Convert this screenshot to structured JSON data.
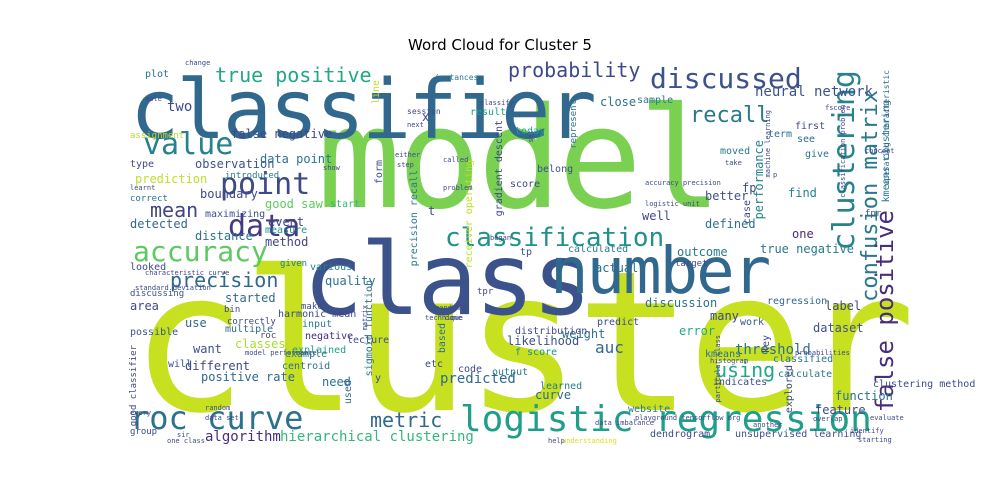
{
  "title": "Word Cloud for Cluster 5",
  "words": [
    {
      "text": "cluster",
      "color": "#c7e020"
    },
    {
      "text": "model",
      "color": "#7ad151"
    },
    {
      "text": "class",
      "color": "#3b528b"
    },
    {
      "text": "classifier",
      "color": "#31688e"
    },
    {
      "text": "number",
      "color": "#31688e"
    },
    {
      "text": "logistic regression",
      "color": "#1f9e89"
    },
    {
      "text": "roc curve",
      "color": "#2c728e"
    },
    {
      "text": "point",
      "color": "#3e4989"
    },
    {
      "text": "value",
      "color": "#26828e"
    },
    {
      "text": "data",
      "color": "#443983"
    },
    {
      "text": "accuracy",
      "color": "#5ec962"
    },
    {
      "text": "classification",
      "color": "#21918c"
    },
    {
      "text": "discussed",
      "color": "#3b528b"
    },
    {
      "text": "clustering",
      "color": "#26828e"
    },
    {
      "text": "confusion matrix",
      "color": "#2a788e"
    },
    {
      "text": "false positive",
      "color": "#472d7b"
    },
    {
      "text": "true positive",
      "color": "#22a884"
    },
    {
      "text": "probability",
      "color": "#3e4989"
    },
    {
      "text": "recall",
      "color": "#2a788e"
    },
    {
      "text": "precision",
      "color": "#31688e"
    },
    {
      "text": "mean",
      "color": "#414487"
    },
    {
      "text": "metric",
      "color": "#31688e"
    },
    {
      "text": "hierarchical clustering",
      "color": "#35b779"
    },
    {
      "text": "algorithm",
      "color": "#472d7b"
    },
    {
      "text": "neural network",
      "color": "#3b528b"
    },
    {
      "text": "using",
      "color": "#22a884"
    },
    {
      "text": "auc",
      "color": "#31688e"
    },
    {
      "text": "threshold",
      "color": "#2c728e"
    },
    {
      "text": "predicted",
      "color": "#31688e"
    },
    {
      "text": "two",
      "color": "#3e4989"
    },
    {
      "text": "observation",
      "color": "#3b528b"
    },
    {
      "text": "boundary",
      "color": "#3e4989"
    },
    {
      "text": "prediction",
      "color": "#bddf26"
    },
    {
      "text": "false negative",
      "color": "#3e4989"
    },
    {
      "text": "data point",
      "color": "#2c728e"
    },
    {
      "text": "detected",
      "color": "#31688e"
    },
    {
      "text": "distance",
      "color": "#2c728e"
    },
    {
      "text": "method",
      "color": "#414487"
    },
    {
      "text": "event",
      "color": "#3e4989"
    },
    {
      "text": "measure",
      "color": "#21918c"
    },
    {
      "text": "good saw",
      "color": "#5ec962"
    },
    {
      "text": "start",
      "color": "#35b779"
    },
    {
      "text": "maximizing",
      "color": "#3b528b"
    },
    {
      "text": "quality",
      "color": "#2c728e"
    },
    {
      "text": "various",
      "color": "#26828e"
    },
    {
      "text": "started",
      "color": "#31688e"
    },
    {
      "text": "area",
      "color": "#3e4989"
    },
    {
      "text": "use",
      "color": "#31688e"
    },
    {
      "text": "harmonic mean",
      "color": "#3e4989"
    },
    {
      "text": "input",
      "color": "#2a788e"
    },
    {
      "text": "negative",
      "color": "#472d7b"
    },
    {
      "text": "lecture",
      "color": "#3b528b"
    },
    {
      "text": "explained",
      "color": "#1f9e89"
    },
    {
      "text": "classes",
      "color": "#aadc32"
    },
    {
      "text": "want",
      "color": "#3b528b"
    },
    {
      "text": "different",
      "color": "#3e4989"
    },
    {
      "text": "positive rate",
      "color": "#31688e"
    },
    {
      "text": "need",
      "color": "#2c728e"
    },
    {
      "text": "used",
      "color": "#31688e"
    },
    {
      "text": "outcome",
      "color": "#2a788e"
    },
    {
      "text": "actual",
      "color": "#2c728e"
    },
    {
      "text": "discussion",
      "color": "#2c728e"
    },
    {
      "text": "likelihood",
      "color": "#3b528b"
    },
    {
      "text": "weight",
      "color": "#2c728e"
    },
    {
      "text": "curve",
      "color": "#31688e"
    },
    {
      "text": "error",
      "color": "#22a884"
    },
    {
      "text": "dataset",
      "color": "#3b528b"
    },
    {
      "text": "label",
      "color": "#3e4989"
    },
    {
      "text": "feature",
      "color": "#3e4989"
    },
    {
      "text": "function",
      "color": "#2c728e"
    },
    {
      "text": "true negative",
      "color": "#2a788e"
    },
    {
      "text": "performance",
      "color": "#26828e"
    },
    {
      "text": "better",
      "color": "#3b528b"
    },
    {
      "text": "find",
      "color": "#26828e"
    },
    {
      "text": "one",
      "color": "#482878"
    },
    {
      "text": "defined",
      "color": "#2c728e"
    },
    {
      "text": "kmeans clustering",
      "color": "#2a788e"
    },
    {
      "text": "dendrogram",
      "color": "#3e4989"
    },
    {
      "text": "unsupervised learning",
      "color": "#3b528b"
    },
    {
      "text": "website",
      "color": "#2c728e"
    },
    {
      "text": "result",
      "color": "#1f9e89"
    },
    {
      "text": "close",
      "color": "#2c728e"
    },
    {
      "text": "sample",
      "color": "#2a788e"
    },
    {
      "text": "moved",
      "color": "#2a788e"
    },
    {
      "text": "first",
      "color": "#3e4989"
    },
    {
      "text": "see",
      "color": "#31688e"
    },
    {
      "text": "give",
      "color": "#2c728e"
    },
    {
      "text": "term",
      "color": "#2c728e"
    },
    {
      "text": "plot",
      "color": "#2c728e"
    },
    {
      "text": "assignment",
      "color": "#b5de2b"
    },
    {
      "text": "type",
      "color": "#3e4989"
    },
    {
      "text": "correct",
      "color": "#2c728e"
    },
    {
      "text": "today",
      "color": "#1f9e89"
    },
    {
      "text": "belong",
      "color": "#3b528b"
    },
    {
      "text": "score",
      "color": "#3e4989"
    },
    {
      "text": "calculated",
      "color": "#2a788e"
    },
    {
      "text": "predict",
      "color": "#3e4989"
    },
    {
      "text": "many",
      "color": "#3e4989"
    },
    {
      "text": "regression",
      "color": "#31688e"
    },
    {
      "text": "work",
      "color": "#3b528b"
    },
    {
      "text": "key",
      "color": "#3e4989"
    },
    {
      "text": "kmeans",
      "color": "#2c728e"
    },
    {
      "text": "classified",
      "color": "#2c728e"
    },
    {
      "text": "calculate",
      "color": "#2a788e"
    },
    {
      "text": "explored",
      "color": "#3e4989"
    },
    {
      "text": "indicates",
      "color": "#3e4989"
    },
    {
      "text": "based",
      "color": "#2c728e"
    },
    {
      "text": "code",
      "color": "#3e4989"
    },
    {
      "text": "output",
      "color": "#2a788e"
    },
    {
      "text": "etc",
      "color": "#3e4989"
    },
    {
      "text": "learned",
      "color": "#2a788e"
    },
    {
      "text": "distribution",
      "color": "#3e4989"
    },
    {
      "text": "f score",
      "color": "#21918c"
    },
    {
      "text": "correctly",
      "color": "#3e4989"
    },
    {
      "text": "multiple",
      "color": "#31688e"
    },
    {
      "text": "possible",
      "color": "#3b528b"
    },
    {
      "text": "will",
      "color": "#3b528b"
    },
    {
      "text": "example",
      "color": "#2a788e"
    },
    {
      "text": "centroid",
      "color": "#2c728e"
    },
    {
      "text": "group",
      "color": "#3e4989"
    },
    {
      "text": "given",
      "color": "#2a788e"
    },
    {
      "text": "looked",
      "color": "#3e4989"
    },
    {
      "text": "discussing",
      "color": "#3b528b"
    },
    {
      "text": "tp",
      "color": "#3e4989"
    },
    {
      "text": "tpr",
      "color": "#3e4989"
    },
    {
      "text": "fpr",
      "color": "#3b528b"
    },
    {
      "text": "make",
      "color": "#3e4989"
    },
    {
      "text": "bin",
      "color": "#3e4989"
    },
    {
      "text": "roc",
      "color": "#3e4989"
    },
    {
      "text": "introduced",
      "color": "#2a788e"
    },
    {
      "text": "represent",
      "color": "#2c728e"
    },
    {
      "text": "instances",
      "color": "#2a788e"
    },
    {
      "text": "change",
      "color": "#3e4989"
    },
    {
      "text": "session",
      "color": "#3e4989"
    },
    {
      "text": "target",
      "color": "#3e4989"
    },
    {
      "text": "sigmoid function",
      "color": "#2c728e"
    },
    {
      "text": "precision recall",
      "color": "#2a788e"
    },
    {
      "text": "receiver operating",
      "color": "#bddf26"
    },
    {
      "text": "gradient descent",
      "color": "#3e4989"
    },
    {
      "text": "operating characteristic",
      "color": "#31688e"
    },
    {
      "text": "form",
      "color": "#3b528b"
    },
    {
      "text": "line",
      "color": "#c2df23"
    },
    {
      "text": "y",
      "color": "#3e4989"
    },
    {
      "text": "case",
      "color": "#3e4989"
    },
    {
      "text": "good classifier",
      "color": "#3e4989"
    },
    {
      "text": "particular class",
      "color": "#3e4989"
    },
    {
      "text": "overlap",
      "color": "#3e4989"
    },
    {
      "text": "another",
      "color": "#3e4989"
    },
    {
      "text": "help",
      "color": "#3e4989"
    },
    {
      "text": "understanding",
      "color": "#d8e219"
    },
    {
      "text": "evaluate",
      "color": "#3e4989"
    },
    {
      "text": "starting",
      "color": "#3e4989"
    },
    {
      "text": "data imbalance",
      "color": "#3e4989"
    },
    {
      "text": "one class",
      "color": "#3e4989"
    },
    {
      "text": "histogram",
      "color": "#3e4989"
    },
    {
      "text": "randomly",
      "color": "#3e4989"
    },
    {
      "text": "every",
      "color": "#3e4989"
    },
    {
      "text": "data set",
      "color": "#3e4989"
    },
    {
      "text": "fscore",
      "color": "#3e4989"
    },
    {
      "text": "classify",
      "color": "#3e4989"
    },
    {
      "text": "called",
      "color": "#3e4989"
    },
    {
      "text": "problem",
      "color": "#3e4989"
    },
    {
      "text": "show",
      "color": "#3e4989"
    },
    {
      "text": "learnt",
      "color": "#3e4989"
    },
    {
      "text": "characteristic curve",
      "color": "#3e4989"
    },
    {
      "text": "standard deviation",
      "color": "#3e4989"
    },
    {
      "text": "able",
      "color": "#3e4989"
    },
    {
      "text": "logistic unit",
      "color": "#3e4989"
    },
    {
      "text": "concept",
      "color": "#3e4989"
    },
    {
      "text": "accuracy precision",
      "color": "#3e4989"
    },
    {
      "text": "take",
      "color": "#3e4989"
    },
    {
      "text": "model performance",
      "color": "#3e4989"
    },
    {
      "text": "matrix",
      "color": "#3e4989"
    },
    {
      "text": "began",
      "color": "#3e4989"
    },
    {
      "text": "identify",
      "color": "#3e4989"
    },
    {
      "text": "playground tensorflow org",
      "color": "#3e4989"
    },
    {
      "text": "probabilities",
      "color": "#3e4989"
    },
    {
      "text": "technique",
      "color": "#3e4989"
    },
    {
      "text": "done",
      "color": "#3e4989"
    },
    {
      "text": "either",
      "color": "#3e4989"
    },
    {
      "text": "step",
      "color": "#3e4989"
    },
    {
      "text": "next",
      "color": "#3e4989"
    },
    {
      "text": "random",
      "color": "#3e4989"
    },
    {
      "text": "sir",
      "color": "#3e4989"
    },
    {
      "text": "set",
      "color": "#3e4989"
    },
    {
      "text": "classification problem",
      "color": "#3e4989"
    },
    {
      "text": "machine learning",
      "color": "#3e4989"
    },
    {
      "text": "clustering method",
      "color": "#3e4989"
    },
    {
      "text": "well",
      "color": "#3e4989"
    },
    {
      "text": "t",
      "color": "#3e4989"
    },
    {
      "text": "x",
      "color": "#3e4989"
    },
    {
      "text": "p",
      "color": "#3e4989"
    },
    {
      "text": "fp",
      "color": "#3e4989"
    },
    {
      "text": "us",
      "color": "#3e4989"
    }
  ]
}
